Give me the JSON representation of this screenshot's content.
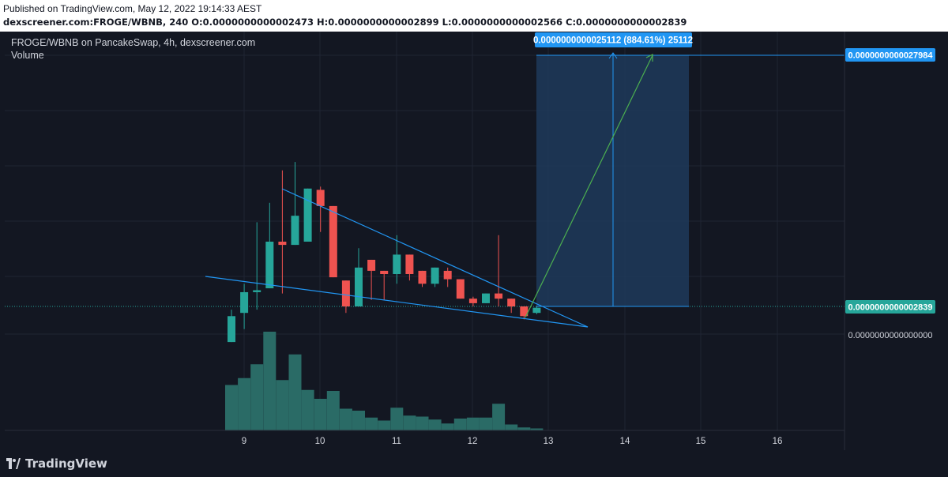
{
  "header": {
    "published": "Published on TradingView.com, May 12, 2022 19:14:33 AEST",
    "ohlc": "dexscreener.com:FROGE/WBNB, 240 O:0.0000000000002473 H:0.0000000000002899 L:0.0000000000002566 C:0.0000000000002839"
  },
  "legend": {
    "title": "FROGE/WBNB on PancakeSwap, 4h, dexscreener.com",
    "volume_label": "Volume"
  },
  "footer": {
    "brand": "TradingView",
    "logo_icon": "tradingview-logo-icon"
  },
  "colors": {
    "background": "#131722",
    "up": "#26a69a",
    "down": "#ef5350",
    "volume": "#2a6b66",
    "trendline": "#2196f3",
    "projection_box": "#1e3a5a",
    "projection_arrow": "#4caf50",
    "price_tag_current": "#26a69a",
    "price_tag_target": "#2196f3"
  },
  "chart_data": {
    "type": "candlestick",
    "x_ticks": [
      "9",
      "10",
      "11",
      "12",
      "13",
      "14",
      "15",
      "16"
    ],
    "y_axis_labels": {
      "target": "0.0000000000027984",
      "current": "0.0000000000002839",
      "zero": "0.0000000000000000"
    },
    "measure_label": "0.0000000000025112 (884.61%) 25112",
    "candles": [
      {
        "o": -0.55,
        "c": -0.15,
        "h": -0.05,
        "l": -0.55,
        "v": 0.46
      },
      {
        "o": -0.1,
        "c": 0.22,
        "h": 0.35,
        "l": -0.35,
        "v": 0.53
      },
      {
        "o": 0.22,
        "c": 0.25,
        "h": 1.3,
        "l": -0.05,
        "v": 0.67
      },
      {
        "o": 0.28,
        "c": 1.0,
        "h": 1.6,
        "l": 0.28,
        "v": 1.0
      },
      {
        "o": 1.0,
        "c": 0.95,
        "h": 2.1,
        "l": 0.2,
        "v": 0.51
      },
      {
        "o": 0.95,
        "c": 1.4,
        "h": 2.23,
        "l": 0.95,
        "v": 0.77
      },
      {
        "o": 1.0,
        "c": 1.82,
        "h": 1.82,
        "l": 1.0,
        "v": 0.41
      },
      {
        "o": 1.8,
        "c": 1.55,
        "h": 1.85,
        "l": 1.15,
        "v": 0.32
      },
      {
        "o": 1.55,
        "c": 0.45,
        "h": 1.55,
        "l": 0.45,
        "v": 0.4
      },
      {
        "o": 0.4,
        "c": 0.0,
        "h": 0.4,
        "l": -0.1,
        "v": 0.22
      },
      {
        "o": -0.0,
        "c": 0.6,
        "h": 0.9,
        "l": -0.0,
        "v": 0.2
      },
      {
        "o": 0.72,
        "c": 0.55,
        "h": 0.72,
        "l": 0.1,
        "v": 0.13
      },
      {
        "o": 0.55,
        "c": 0.5,
        "h": 0.55,
        "l": 0.1,
        "v": 0.1
      },
      {
        "o": 0.5,
        "c": 0.8,
        "h": 1.1,
        "l": 0.35,
        "v": 0.23
      },
      {
        "o": 0.8,
        "c": 0.5,
        "h": 0.8,
        "l": 0.4,
        "v": 0.15
      },
      {
        "o": 0.55,
        "c": 0.35,
        "h": 0.55,
        "l": 0.3,
        "v": 0.14
      },
      {
        "o": 0.35,
        "c": 0.6,
        "h": 0.6,
        "l": 0.3,
        "v": 0.11
      },
      {
        "o": 0.55,
        "c": 0.42,
        "h": 0.6,
        "l": 0.3,
        "v": 0.07
      },
      {
        "o": 0.42,
        "c": 0.12,
        "h": 0.42,
        "l": 0.12,
        "v": 0.12
      },
      {
        "o": 0.12,
        "c": 0.05,
        "h": 0.15,
        "l": 0.0,
        "v": 0.13
      },
      {
        "o": 0.05,
        "c": 0.2,
        "h": 0.2,
        "l": 0.05,
        "v": 0.13
      },
      {
        "o": 0.2,
        "c": 0.12,
        "h": 1.1,
        "l": 0.0,
        "v": 0.27
      },
      {
        "o": 0.12,
        "c": 0.0,
        "h": 0.12,
        "l": -0.1,
        "v": 0.06
      },
      {
        "o": 0.0,
        "c": -0.15,
        "h": 0.0,
        "l": -0.2,
        "v": 0.03
      },
      {
        "o": -0.1,
        "c": -0.02,
        "h": -0.0,
        "l": -0.12,
        "v": 0.02
      }
    ]
  }
}
